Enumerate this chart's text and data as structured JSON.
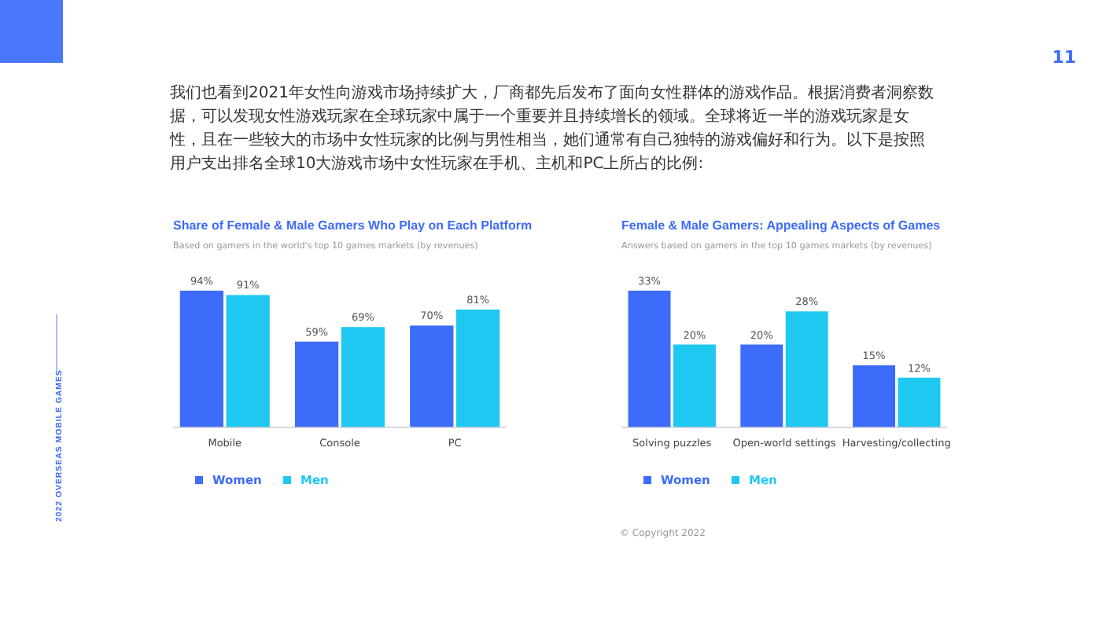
{
  "chart_data": [
    {
      "type": "bar",
      "title": "Share of Female & Male Gamers Who Play on Each Platform",
      "subtitle": "Based on gamers in the world's top 10 games markets (by revenues)",
      "categories": [
        "Mobile",
        "Console",
        "PC"
      ],
      "series": [
        {
          "name": "Women",
          "color": "#3d6bfa",
          "values": [
            94,
            59,
            70
          ],
          "value_labels": [
            "94%",
            "59%",
            "70%"
          ]
        },
        {
          "name": "Men",
          "color": "#1fc8f0",
          "values": [
            91,
            69,
            81
          ],
          "value_labels": [
            "91%",
            "69%",
            "81%"
          ]
        }
      ],
      "legend": "bottom left",
      "annotations": [
        "我们也看到2021年女性向游戏市场持续扩大，厂商都先后发布了面向女性群体的游戏作品。根据消费者洞察数据，可以发现女性游戏玩家在全球玩家中属于一个重要并且持续增长的领域。全球将近一半的游戏玩家是女性，且在一些较大的市场中女性玩家的比例与男性相当，她们通常有自己独特的游戏偏好和行为。以下是按照用户支出排名全球10大游戏市场中女性玩家在手机、主机和PC上所占的比例:",
        "11",
        "2022 OVERSEAS MOBILE GAMES"
      ]
    },
    {
      "type": "bar",
      "title": "Female & Male Gamers: Appealing Aspects of Games",
      "subtitle": "Answers based on gamers in the top 10 games markets (by revenues)",
      "categories": [
        "Solving puzzles",
        "Open-world settings",
        "Harvesting/collecting"
      ],
      "series": [
        {
          "name": "Women",
          "color": "#3d6bfa",
          "values": [
            33,
            20,
            15
          ],
          "value_labels": [
            "33%",
            "20%",
            "15%"
          ]
        },
        {
          "name": "Men",
          "color": "#1fc8f0",
          "values": [
            20,
            28,
            12
          ],
          "value_labels": [
            "20%",
            "28%",
            "12%"
          ]
        }
      ],
      "legend": "bottom left",
      "annotations": [
        "© Copyright 2022"
      ]
    }
  ]
}
